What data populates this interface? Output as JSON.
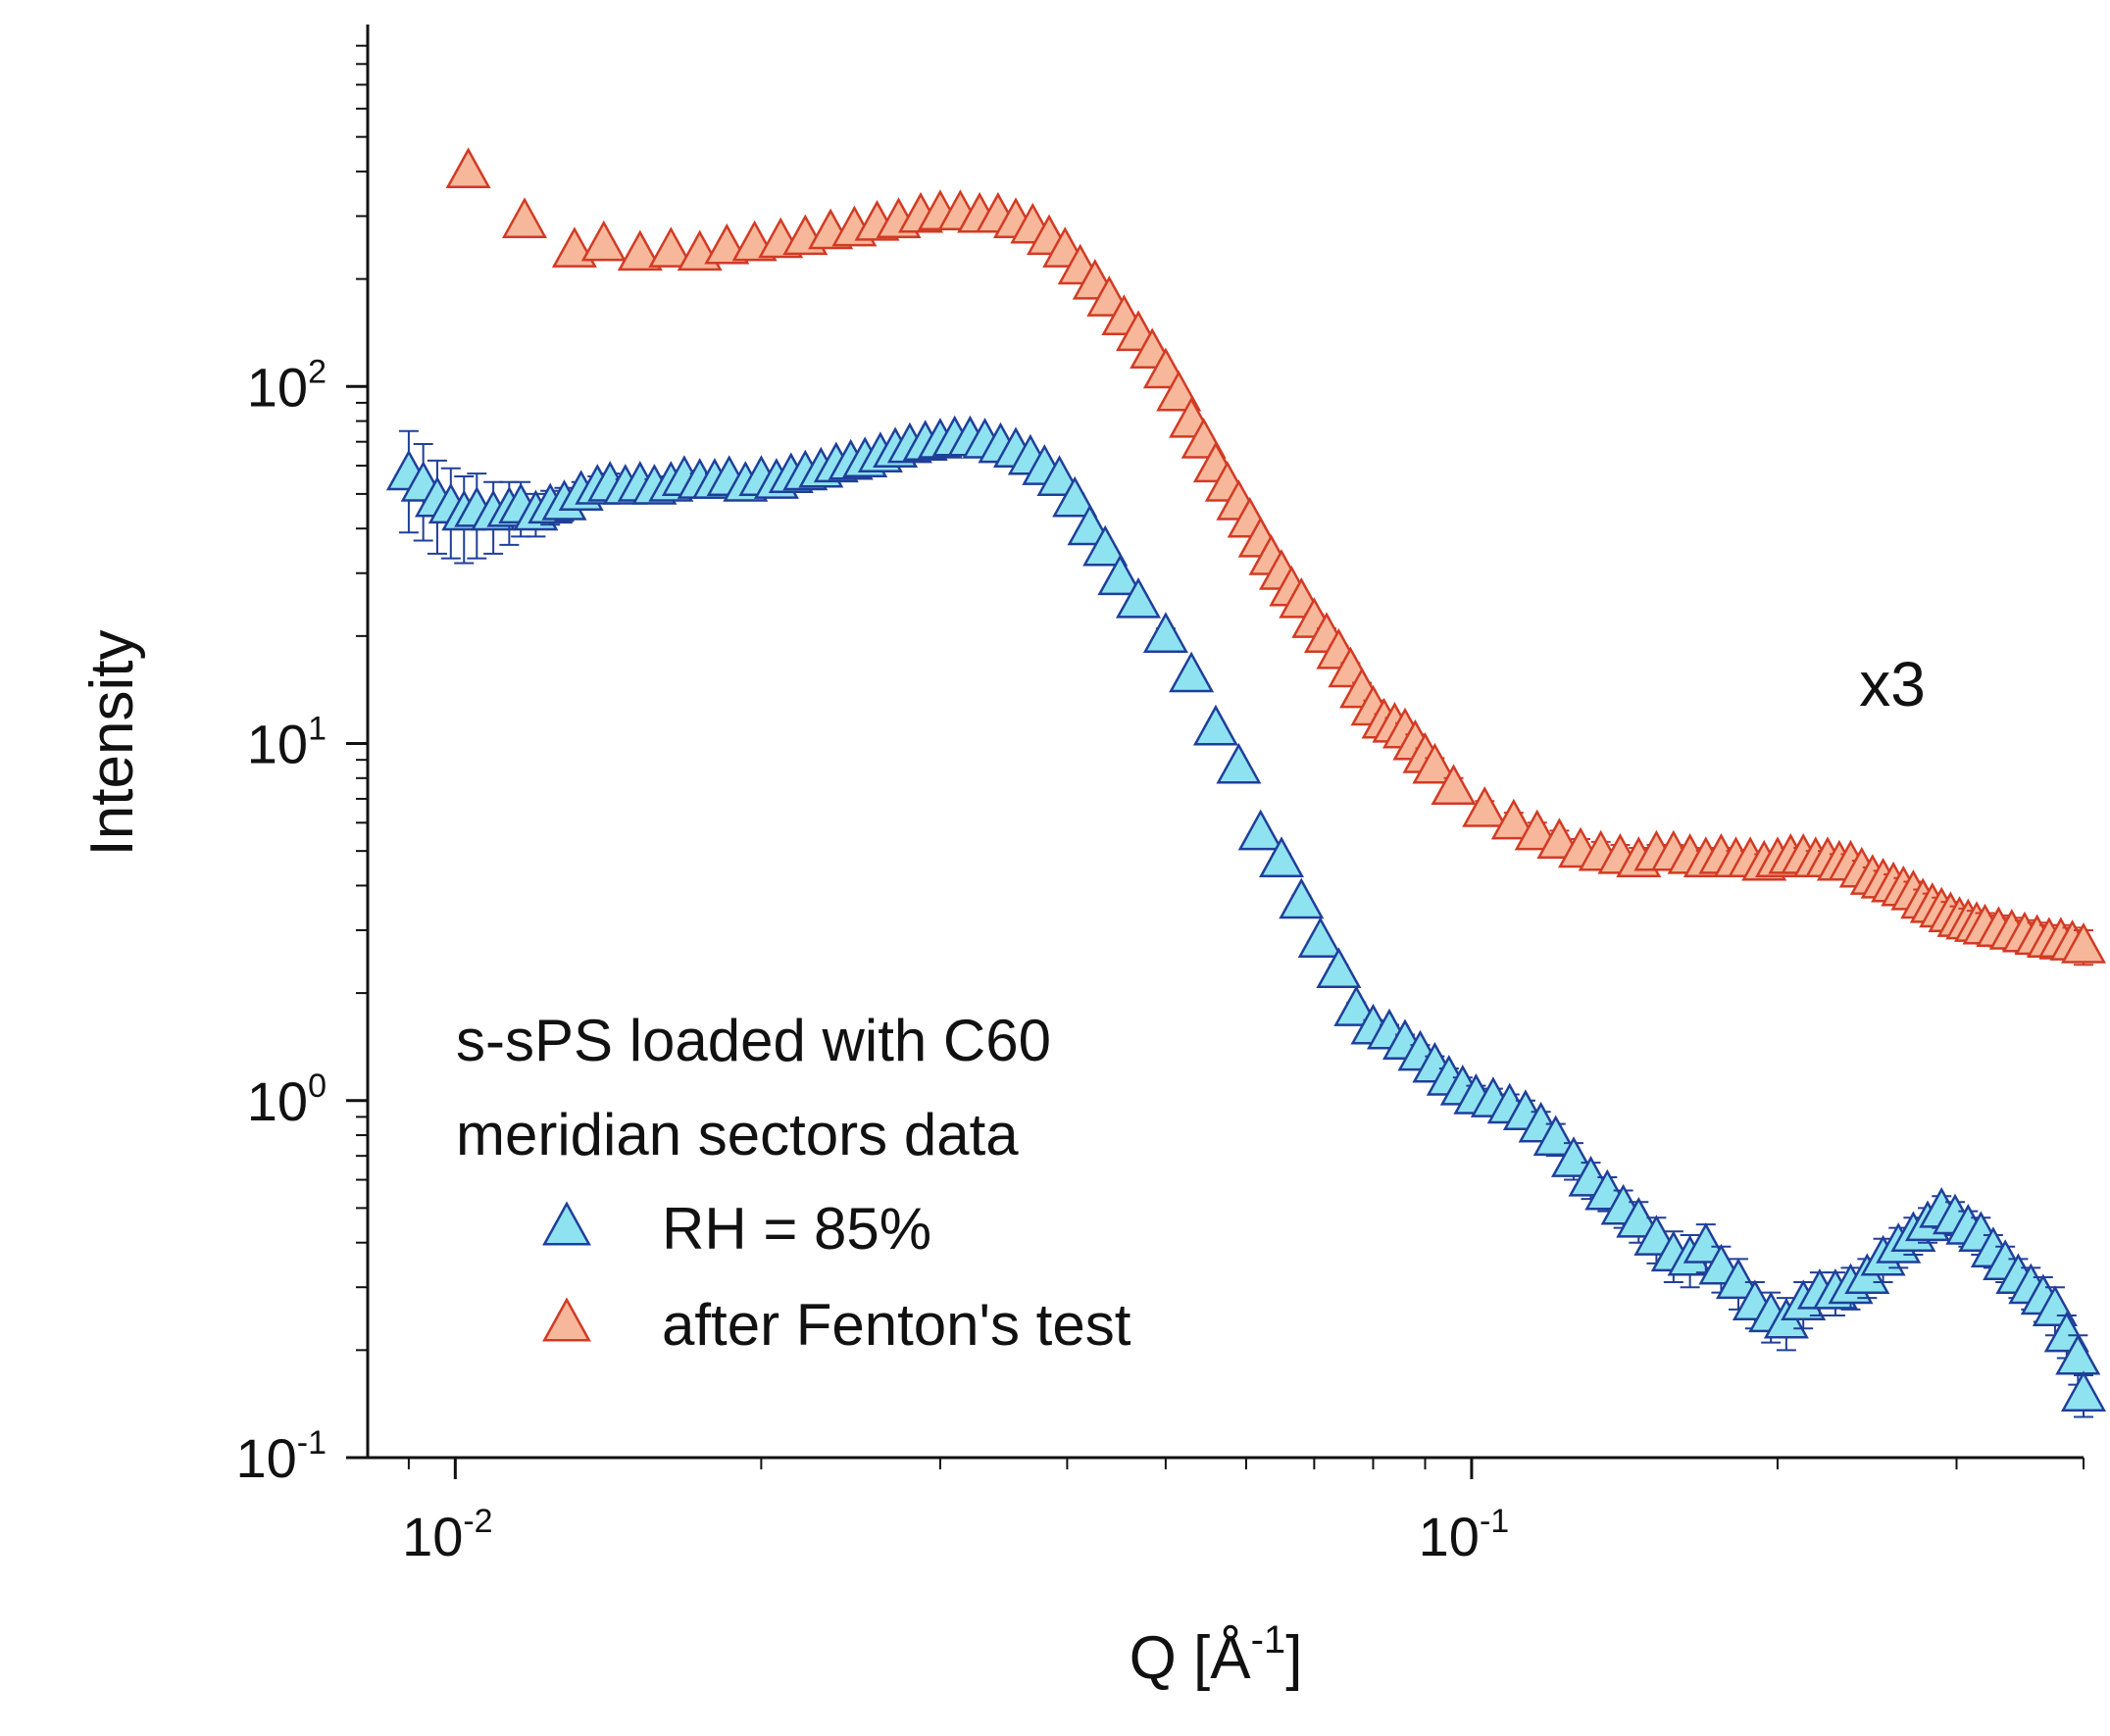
{
  "chart_data": {
    "type": "scatter",
    "xlabel": "Q [Å",
    "xlabel_sup": "-1",
    "xlabel_close": "]",
    "ylabel": "Intensity",
    "x_scale": "log",
    "y_scale": "log",
    "xlim": [
      0.0082,
      0.4
    ],
    "ylim": [
      0.1,
      1000
    ],
    "x_ticks": [
      {
        "base": "10",
        "exp": "-2",
        "value": 0.01
      },
      {
        "base": "10",
        "exp": "-1",
        "value": 0.1
      }
    ],
    "y_ticks": [
      {
        "base": "10",
        "exp": "-1",
        "value": 0.1
      },
      {
        "base": "10",
        "exp": "0",
        "value": 1
      },
      {
        "base": "10",
        "exp": "1",
        "value": 10
      },
      {
        "base": "10",
        "exp": "2",
        "value": 100
      }
    ],
    "legend": {
      "title_lines": [
        "s-sPS loaded with C60",
        "meridian sectors data"
      ],
      "placement": "bottom-left"
    },
    "annotation": "x3",
    "series": [
      {
        "name": "RH = 85%",
        "marker": "triangle",
        "fill": "#8fe3f0",
        "stroke": "#1f3f9a",
        "points": [
          [
            0.009,
            57,
            18
          ],
          [
            0.0093,
            53,
            16
          ],
          [
            0.0096,
            48,
            14
          ],
          [
            0.0099,
            46,
            13
          ],
          [
            0.0102,
            44,
            12
          ],
          [
            0.0105,
            45,
            12
          ],
          [
            0.0109,
            44,
            10
          ],
          [
            0.0113,
            45,
            9
          ],
          [
            0.0116,
            46,
            8
          ],
          [
            0.012,
            44,
            6
          ],
          [
            0.0124,
            46,
            5
          ],
          [
            0.0128,
            47,
            5
          ],
          [
            0.0133,
            50,
            4
          ],
          [
            0.0138,
            52,
            4
          ],
          [
            0.0142,
            53,
            4
          ],
          [
            0.0147,
            52,
            3
          ],
          [
            0.0152,
            53,
            3
          ],
          [
            0.0157,
            52,
            3
          ],
          [
            0.0163,
            53,
            3
          ],
          [
            0.0168,
            55,
            3
          ],
          [
            0.0174,
            54,
            3
          ],
          [
            0.018,
            54,
            3
          ],
          [
            0.0186,
            55,
            2
          ],
          [
            0.0193,
            53,
            2
          ],
          [
            0.02,
            55,
            2
          ],
          [
            0.0207,
            54,
            2
          ],
          [
            0.0214,
            56,
            2
          ],
          [
            0.0221,
            57,
            2
          ],
          [
            0.0229,
            58,
            2
          ],
          [
            0.0237,
            60,
            2
          ],
          [
            0.0245,
            61,
            2
          ],
          [
            0.0253,
            62,
            2
          ],
          [
            0.0262,
            64,
            2
          ],
          [
            0.0271,
            66,
            2
          ],
          [
            0.028,
            68,
            2
          ],
          [
            0.029,
            69,
            2
          ],
          [
            0.03,
            70,
            2
          ],
          [
            0.031,
            71,
            2
          ],
          [
            0.0321,
            71,
            2
          ],
          [
            0.0332,
            70,
            2
          ],
          [
            0.0344,
            68,
            2
          ],
          [
            0.0356,
            66,
            2
          ],
          [
            0.0368,
            63,
            2
          ],
          [
            0.038,
            59,
            2
          ],
          [
            0.0393,
            55,
            2
          ],
          [
            0.0407,
            48,
            2
          ],
          [
            0.0421,
            40,
            1
          ],
          [
            0.0436,
            35,
            1
          ],
          [
            0.0451,
            29,
            1
          ],
          [
            0.047,
            25,
            1
          ],
          [
            0.05,
            20,
            1
          ],
          [
            0.053,
            15.5,
            0.5
          ],
          [
            0.056,
            11,
            0.4
          ],
          [
            0.059,
            8.6,
            0.3
          ],
          [
            0.062,
            5.6,
            0.2
          ],
          [
            0.065,
            4.7,
            0.2
          ],
          [
            0.068,
            3.6,
            0.15
          ],
          [
            0.071,
            2.8,
            0.1
          ],
          [
            0.074,
            2.3,
            0.1
          ],
          [
            0.077,
            1.8,
            0.08
          ],
          [
            0.08,
            1.6,
            0.08
          ],
          [
            0.083,
            1.55,
            0.08
          ],
          [
            0.086,
            1.45,
            0.08
          ],
          [
            0.089,
            1.35,
            0.08
          ],
          [
            0.092,
            1.25,
            0.08
          ],
          [
            0.095,
            1.15,
            0.08
          ],
          [
            0.098,
            1.08,
            0.08
          ],
          [
            0.101,
            1.02,
            0.08
          ],
          [
            0.105,
            1.0,
            0.08
          ],
          [
            0.109,
            0.96,
            0.08
          ],
          [
            0.113,
            0.92,
            0.08
          ],
          [
            0.117,
            0.85,
            0.08
          ],
          [
            0.121,
            0.78,
            0.08
          ],
          [
            0.126,
            0.68,
            0.08
          ],
          [
            0.131,
            0.6,
            0.07
          ],
          [
            0.136,
            0.55,
            0.06
          ],
          [
            0.141,
            0.5,
            0.06
          ],
          [
            0.146,
            0.46,
            0.06
          ],
          [
            0.152,
            0.41,
            0.06
          ],
          [
            0.158,
            0.37,
            0.06
          ],
          [
            0.164,
            0.36,
            0.06
          ],
          [
            0.17,
            0.39,
            0.06
          ],
          [
            0.176,
            0.34,
            0.05
          ],
          [
            0.183,
            0.31,
            0.05
          ],
          [
            0.19,
            0.27,
            0.04
          ],
          [
            0.197,
            0.25,
            0.04
          ],
          [
            0.204,
            0.24,
            0.04
          ],
          [
            0.212,
            0.27,
            0.04
          ],
          [
            0.22,
            0.29,
            0.04
          ],
          [
            0.228,
            0.29,
            0.04
          ],
          [
            0.236,
            0.3,
            0.04
          ],
          [
            0.245,
            0.32,
            0.04
          ],
          [
            0.254,
            0.36,
            0.05
          ],
          [
            0.263,
            0.39,
            0.05
          ],
          [
            0.272,
            0.42,
            0.05
          ],
          [
            0.281,
            0.45,
            0.05
          ],
          [
            0.29,
            0.49,
            0.05
          ],
          [
            0.299,
            0.47,
            0.05
          ],
          [
            0.308,
            0.44,
            0.05
          ],
          [
            0.317,
            0.42,
            0.05
          ],
          [
            0.326,
            0.38,
            0.04
          ],
          [
            0.335,
            0.35,
            0.04
          ],
          [
            0.345,
            0.32,
            0.04
          ],
          [
            0.355,
            0.3,
            0.04
          ],
          [
            0.365,
            0.28,
            0.04
          ],
          [
            0.375,
            0.26,
            0.04
          ],
          [
            0.385,
            0.22,
            0.03
          ],
          [
            0.395,
            0.19,
            0.03
          ],
          [
            0.4,
            0.15,
            0.02
          ]
        ]
      },
      {
        "name": "after Fenton's test",
        "marker": "triangle",
        "fill": "#f7b79a",
        "stroke": "#d23a24",
        "points": [
          [
            0.0103,
            400,
            0
          ],
          [
            0.0117,
            290,
            0
          ],
          [
            0.0131,
            240,
            0
          ],
          [
            0.014,
            250,
            0
          ],
          [
            0.0152,
            235,
            0
          ],
          [
            0.0163,
            240,
            0
          ],
          [
            0.0174,
            235,
            0
          ],
          [
            0.0185,
            245,
            0
          ],
          [
            0.0197,
            250,
            0
          ],
          [
            0.0209,
            255,
            0
          ],
          [
            0.0221,
            260,
            0
          ],
          [
            0.0234,
            270,
            0
          ],
          [
            0.0247,
            275,
            0
          ],
          [
            0.026,
            285,
            0
          ],
          [
            0.0273,
            290,
            0
          ],
          [
            0.0287,
            300,
            0
          ],
          [
            0.03,
            305,
            0
          ],
          [
            0.0314,
            305,
            0
          ],
          [
            0.0328,
            300,
            0
          ],
          [
            0.0342,
            300,
            0
          ],
          [
            0.0356,
            290,
            0
          ],
          [
            0.037,
            280,
            0
          ],
          [
            0.0384,
            260,
            0
          ],
          [
            0.0398,
            240,
            0
          ],
          [
            0.0412,
            215,
            0
          ],
          [
            0.0426,
            195,
            0
          ],
          [
            0.044,
            175,
            0
          ],
          [
            0.0455,
            155,
            0
          ],
          [
            0.047,
            140,
            0
          ],
          [
            0.0485,
            125,
            0
          ],
          [
            0.05,
            110,
            0
          ],
          [
            0.0515,
            95,
            0
          ],
          [
            0.053,
            80,
            0
          ],
          [
            0.0545,
            70,
            0
          ],
          [
            0.056,
            60,
            0
          ],
          [
            0.0575,
            53,
            0
          ],
          [
            0.059,
            47,
            0
          ],
          [
            0.0605,
            42,
            0
          ],
          [
            0.062,
            37,
            0
          ],
          [
            0.0635,
            33,
            0
          ],
          [
            0.065,
            30,
            0
          ],
          [
            0.0665,
            27,
            1
          ],
          [
            0.068,
            25,
            1
          ],
          [
            0.07,
            22,
            1
          ],
          [
            0.072,
            20,
            1
          ],
          [
            0.074,
            18,
            0.8
          ],
          [
            0.076,
            16,
            0.8
          ],
          [
            0.078,
            14,
            0.8
          ],
          [
            0.08,
            12.5,
            0.7
          ],
          [
            0.082,
            11.5,
            0.6
          ],
          [
            0.084,
            11.2,
            0.6
          ],
          [
            0.086,
            10.8,
            0.6
          ],
          [
            0.088,
            10,
            0.6
          ],
          [
            0.09,
            9.2,
            0.5
          ],
          [
            0.092,
            8.6,
            0.5
          ],
          [
            0.096,
            7.5,
            0.5
          ],
          [
            0.103,
            6.5,
            0.4
          ],
          [
            0.11,
            6.0,
            0.4
          ],
          [
            0.116,
            5.6,
            0.4
          ],
          [
            0.122,
            5.3,
            0.4
          ],
          [
            0.128,
            5.0,
            0.4
          ],
          [
            0.134,
            4.9,
            0.4
          ],
          [
            0.14,
            4.8,
            0.4
          ],
          [
            0.146,
            4.7,
            0.4
          ],
          [
            0.152,
            4.9,
            0.3
          ],
          [
            0.158,
            4.9,
            0.3
          ],
          [
            0.164,
            4.8,
            0.3
          ],
          [
            0.17,
            4.7,
            0.3
          ],
          [
            0.176,
            4.8,
            0.3
          ],
          [
            0.182,
            4.7,
            0.3
          ],
          [
            0.188,
            4.7,
            0.3
          ],
          [
            0.194,
            4.6,
            0.3
          ],
          [
            0.2,
            4.7,
            0.3
          ],
          [
            0.206,
            4.8,
            0.3
          ],
          [
            0.212,
            4.8,
            0.3
          ],
          [
            0.218,
            4.7,
            0.3
          ],
          [
            0.224,
            4.7,
            0.3
          ],
          [
            0.23,
            4.6,
            0.3
          ],
          [
            0.236,
            4.6,
            0.3
          ],
          [
            0.242,
            4.4,
            0.3
          ],
          [
            0.248,
            4.2,
            0.3
          ],
          [
            0.254,
            4.1,
            0.3
          ],
          [
            0.26,
            4.0,
            0.3
          ],
          [
            0.266,
            3.9,
            0.3
          ],
          [
            0.272,
            3.8,
            0.3
          ],
          [
            0.278,
            3.6,
            0.3
          ],
          [
            0.284,
            3.5,
            0.3
          ],
          [
            0.29,
            3.4,
            0.3
          ],
          [
            0.296,
            3.3,
            0.3
          ],
          [
            0.302,
            3.2,
            0.3
          ],
          [
            0.308,
            3.15,
            0.3
          ],
          [
            0.314,
            3.1,
            0.3
          ],
          [
            0.32,
            3.05,
            0.3
          ],
          [
            0.33,
            3.0,
            0.3
          ],
          [
            0.34,
            2.95,
            0.3
          ],
          [
            0.35,
            2.9,
            0.3
          ],
          [
            0.36,
            2.85,
            0.3
          ],
          [
            0.37,
            2.8,
            0.3
          ],
          [
            0.38,
            2.8,
            0.3
          ],
          [
            0.39,
            2.75,
            0.3
          ],
          [
            0.4,
            2.7,
            0.3
          ]
        ]
      }
    ]
  }
}
